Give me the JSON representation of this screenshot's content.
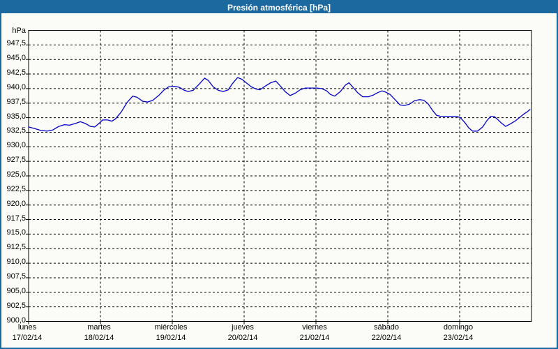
{
  "window": {
    "title": "Presión atmosférica [hPa]"
  },
  "colors": {
    "frame": "#1b699f",
    "titlebar_bg": "#1b699f",
    "title_text": "#ffffff",
    "content_bg": "#fbfcf7",
    "axis": "#000000",
    "grid": "#000000",
    "line": "#0000c8"
  },
  "chart_data": {
    "type": "line",
    "title": "Presión atmosférica [hPa]",
    "y_unit": "hPa",
    "ylabel": "hPa",
    "xlabel": "",
    "ylim": [
      900,
      950
    ],
    "y_tick_step": 2.5,
    "y_tick_labels": [
      "947,5",
      "945,0",
      "942,5",
      "940,0",
      "937,5",
      "935,0",
      "932,5",
      "930,0",
      "927,5",
      "925,0",
      "922,5",
      "920,0",
      "917,5",
      "915,0",
      "912,5",
      "910,0",
      "907,5",
      "905,0",
      "902,5",
      "900,0"
    ],
    "x_range_days": [
      0,
      7
    ],
    "x_tick_labels": [
      {
        "day": "lunes",
        "date": "17/02/14"
      },
      {
        "day": "martes",
        "date": "18/02/14"
      },
      {
        "day": "miércoles",
        "date": "19/02/14"
      },
      {
        "day": "jueves",
        "date": "20/02/14"
      },
      {
        "day": "viernes",
        "date": "21/02/14"
      },
      {
        "day": "sábado",
        "date": "22/02/14"
      },
      {
        "day": "domingo",
        "date": "23/02/14"
      }
    ],
    "grid": "dashed",
    "legend": "none",
    "series": [
      {
        "name": "Presión atmosférica",
        "color": "#0000c8",
        "x_days": [
          0,
          0.09,
          0.17,
          0.26,
          0.34,
          0.42,
          0.5,
          0.57,
          0.65,
          0.72,
          0.79,
          0.86,
          0.92,
          0.98,
          1.03,
          1.1,
          1.16,
          1.21,
          1.29,
          1.37,
          1.45,
          1.51,
          1.59,
          1.66,
          1.73,
          1.81,
          1.88,
          1.95,
          2.03,
          2.1,
          2.17,
          2.22,
          2.29,
          2.37,
          2.45,
          2.5,
          2.57,
          2.64,
          2.71,
          2.78,
          2.84,
          2.91,
          2.97,
          3.03,
          3.1,
          3.17,
          3.22,
          3.29,
          3.37,
          3.44,
          3.5,
          3.57,
          3.64,
          3.71,
          3.78,
          3.85,
          3.93,
          4.01,
          4.08,
          4.15,
          4.2,
          4.26,
          4.34,
          4.41,
          4.46,
          4.51,
          4.58,
          4.65,
          4.73,
          4.8,
          4.86,
          4.92,
          4.97,
          5.03,
          5.1,
          5.17,
          5.23,
          5.3,
          5.37,
          5.44,
          5.5,
          5.56,
          5.62,
          5.68,
          5.74,
          5.82,
          5.89,
          5.96,
          6.01,
          6.07,
          6.13,
          6.18,
          6.25,
          6.32,
          6.38,
          6.43,
          6.48,
          6.52,
          6.58,
          6.64,
          6.7,
          6.77,
          6.83,
          6.89,
          6.94,
          6.98
        ],
        "values": [
          933.4,
          933.1,
          932.8,
          932.7,
          932.9,
          933.5,
          933.8,
          933.7,
          934.0,
          934.3,
          934.0,
          933.5,
          933.4,
          934.0,
          934.6,
          934.6,
          934.4,
          934.8,
          936.0,
          937.6,
          938.7,
          938.5,
          937.8,
          937.7,
          938.0,
          938.8,
          939.7,
          940.3,
          940.4,
          940.2,
          939.7,
          939.5,
          939.7,
          940.7,
          941.8,
          941.4,
          940.3,
          939.7,
          939.5,
          939.8,
          940.9,
          941.9,
          941.6,
          941.0,
          940.3,
          939.9,
          939.8,
          940.4,
          941.0,
          941.3,
          940.5,
          939.5,
          938.8,
          939.2,
          939.8,
          940.1,
          940.1,
          940.1,
          940.0,
          939.6,
          939.0,
          938.7,
          939.5,
          940.6,
          941.0,
          940.3,
          939.3,
          938.6,
          938.6,
          938.9,
          939.3,
          939.6,
          939.4,
          939.0,
          938.1,
          937.2,
          937.1,
          937.3,
          937.9,
          938.1,
          938.0,
          937.4,
          936.3,
          935.4,
          935.2,
          935.2,
          935.2,
          935.2,
          935.0,
          934.2,
          933.2,
          932.7,
          932.7,
          933.4,
          934.5,
          935.2,
          935.2,
          934.8,
          934.1,
          933.5,
          933.9,
          934.4,
          935.0,
          935.6,
          936.0,
          936.4
        ]
      }
    ]
  }
}
